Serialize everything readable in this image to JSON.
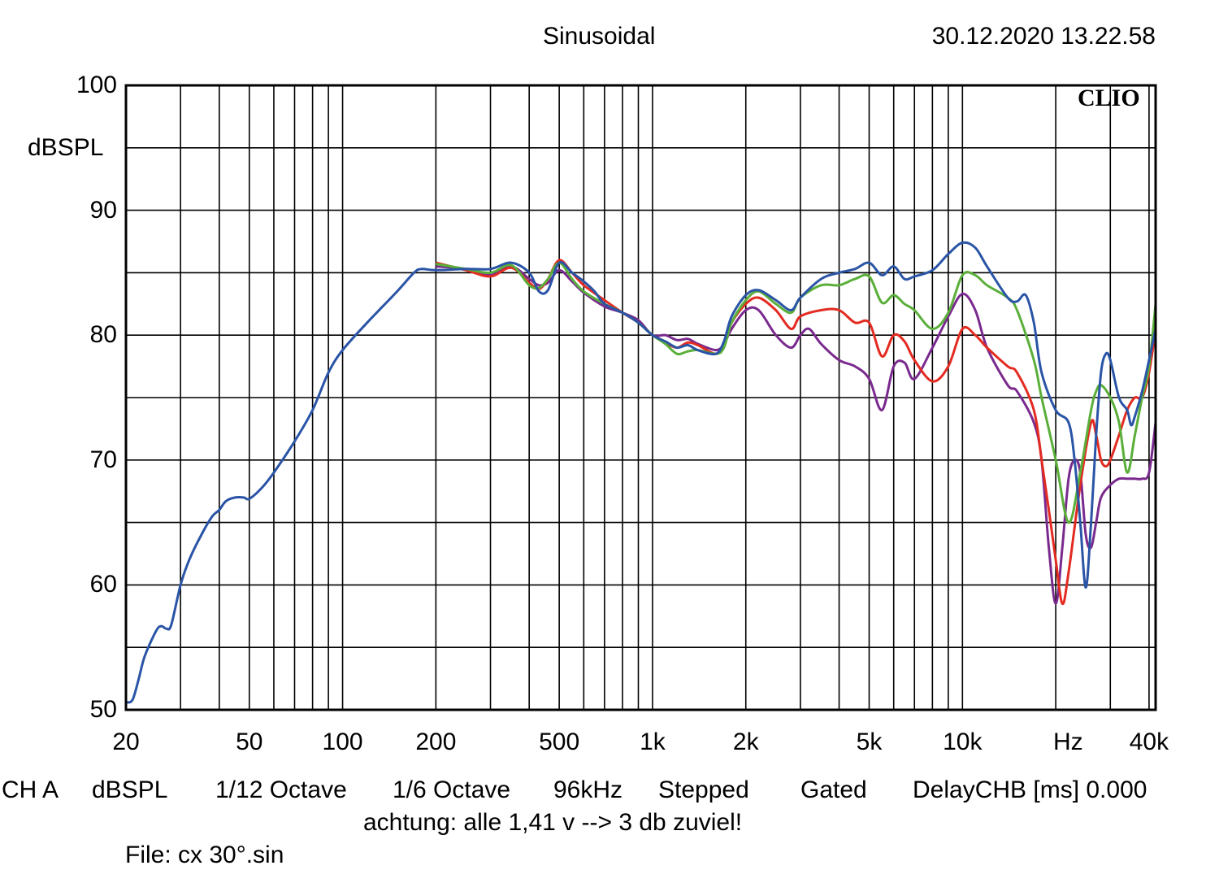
{
  "header": {
    "title": "Sinusoidal",
    "timestamp": "30.12.2020 13.22.58",
    "brand": "CLIO"
  },
  "footer": {
    "line1": [
      "CH A",
      "dBSPL",
      "1/12 Octave",
      "1/6 Octave",
      "96kHz",
      "Stepped",
      "Gated",
      "DelayCHB [ms] 0.000"
    ],
    "line2": "achtung: alle 1,41 v --> 3 db zuviel!",
    "line3": "File: cx 30°.sin"
  },
  "chart_data": {
    "type": "line",
    "title": "Sinusoidal",
    "xlabel": "Hz",
    "ylabel": "dBSPL",
    "x_scale": "log",
    "xlim": [
      20,
      42000
    ],
    "ylim": [
      50,
      100
    ],
    "grid": true,
    "legend": "none",
    "x_ticks": [
      {
        "value": 20,
        "label": "20"
      },
      {
        "value": 50,
        "label": "50"
      },
      {
        "value": 100,
        "label": "100"
      },
      {
        "value": 200,
        "label": "200"
      },
      {
        "value": 500,
        "label": "500"
      },
      {
        "value": 1000,
        "label": "1k"
      },
      {
        "value": 2000,
        "label": "2k"
      },
      {
        "value": 5000,
        "label": "5k"
      },
      {
        "value": 10000,
        "label": "10k"
      },
      {
        "value": 40000,
        "label": "40k"
      }
    ],
    "y_ticks": [
      {
        "value": 100,
        "label": "100"
      },
      {
        "value": 90,
        "label": "90"
      },
      {
        "value": 80,
        "label": "80"
      },
      {
        "value": 70,
        "label": "70"
      },
      {
        "value": 60,
        "label": "60"
      },
      {
        "value": 50,
        "label": "50"
      }
    ],
    "series": [
      {
        "color": "#2a54a6",
        "points": [
          [
            20,
            50.6
          ],
          [
            21,
            50.8
          ],
          [
            22,
            52.5
          ],
          [
            23,
            54.3
          ],
          [
            25,
            56.3
          ],
          [
            26,
            56.7
          ],
          [
            27,
            56.5
          ],
          [
            28,
            56.8
          ],
          [
            30,
            60
          ],
          [
            32,
            62
          ],
          [
            35,
            64
          ],
          [
            38,
            65.5
          ],
          [
            40,
            66
          ],
          [
            42,
            66.7
          ],
          [
            45,
            67
          ],
          [
            48,
            67
          ],
          [
            50,
            66.9
          ],
          [
            55,
            67.8
          ],
          [
            60,
            69
          ],
          [
            70,
            71.5
          ],
          [
            80,
            74
          ],
          [
            90,
            77
          ],
          [
            100,
            78.8
          ],
          [
            120,
            81
          ],
          [
            150,
            83.5
          ],
          [
            170,
            85
          ],
          [
            180,
            85.3
          ],
          [
            200,
            85.2
          ],
          [
            250,
            85.3
          ],
          [
            300,
            85.3
          ],
          [
            350,
            85.8
          ],
          [
            400,
            85
          ],
          [
            430,
            83.5
          ],
          [
            460,
            83.6
          ],
          [
            500,
            85.8
          ],
          [
            550,
            85
          ],
          [
            600,
            84.3
          ],
          [
            650,
            83.5
          ],
          [
            700,
            82.5
          ],
          [
            800,
            81.8
          ],
          [
            900,
            81
          ],
          [
            1000,
            80
          ],
          [
            1100,
            79.5
          ],
          [
            1200,
            79
          ],
          [
            1300,
            79.2
          ],
          [
            1400,
            78.8
          ],
          [
            1600,
            78.5
          ],
          [
            1700,
            79.5
          ],
          [
            1800,
            81.5
          ],
          [
            2000,
            83.2
          ],
          [
            2200,
            83.6
          ],
          [
            2500,
            82.8
          ],
          [
            2800,
            82
          ],
          [
            3000,
            83
          ],
          [
            3500,
            84.5
          ],
          [
            4000,
            85
          ],
          [
            4500,
            85.3
          ],
          [
            5000,
            85.8
          ],
          [
            5500,
            84.8
          ],
          [
            6000,
            85.5
          ],
          [
            6500,
            84.5
          ],
          [
            7000,
            84.7
          ],
          [
            8000,
            85.2
          ],
          [
            9000,
            86.5
          ],
          [
            10000,
            87.4
          ],
          [
            11000,
            87
          ],
          [
            12000,
            85.5
          ],
          [
            14000,
            83
          ],
          [
            15000,
            82.7
          ],
          [
            16000,
            83.2
          ],
          [
            17000,
            81
          ],
          [
            18000,
            77
          ],
          [
            20000,
            74
          ],
          [
            22000,
            73
          ],
          [
            23000,
            70
          ],
          [
            24000,
            65
          ],
          [
            25000,
            59.8
          ],
          [
            26000,
            65
          ],
          [
            27000,
            72
          ],
          [
            28000,
            77
          ],
          [
            29000,
            78.5
          ],
          [
            30000,
            78
          ],
          [
            32000,
            75
          ],
          [
            34000,
            74
          ],
          [
            35000,
            72.8
          ],
          [
            36000,
            73.5
          ],
          [
            38000,
            75.5
          ],
          [
            40000,
            78
          ],
          [
            42000,
            80.5
          ]
        ]
      },
      {
        "color": "#5aaf3a",
        "points": [
          [
            200,
            85.7
          ],
          [
            250,
            85.3
          ],
          [
            300,
            85
          ],
          [
            350,
            85.6
          ],
          [
            400,
            84
          ],
          [
            430,
            83.8
          ],
          [
            460,
            84.5
          ],
          [
            500,
            85.8
          ],
          [
            550,
            84.5
          ],
          [
            600,
            83.5
          ],
          [
            700,
            82.5
          ],
          [
            800,
            81.8
          ],
          [
            900,
            81
          ],
          [
            1000,
            80
          ],
          [
            1100,
            79.3
          ],
          [
            1200,
            78.5
          ],
          [
            1300,
            78.7
          ],
          [
            1400,
            78.8
          ],
          [
            1600,
            78.5
          ],
          [
            1700,
            79
          ],
          [
            1800,
            81
          ],
          [
            2000,
            82.8
          ],
          [
            2200,
            83.5
          ],
          [
            2500,
            82.5
          ],
          [
            2800,
            81.8
          ],
          [
            3000,
            83
          ],
          [
            3500,
            84
          ],
          [
            4000,
            84
          ],
          [
            4500,
            84.5
          ],
          [
            5000,
            84.7
          ],
          [
            5500,
            82.6
          ],
          [
            6000,
            83.2
          ],
          [
            6500,
            82.5
          ],
          [
            7000,
            82
          ],
          [
            8000,
            80.5
          ],
          [
            9000,
            81.8
          ],
          [
            10000,
            84.8
          ],
          [
            11000,
            84.8
          ],
          [
            12000,
            84
          ],
          [
            14000,
            83
          ],
          [
            15000,
            82
          ],
          [
            17000,
            78
          ],
          [
            18000,
            75
          ],
          [
            20000,
            70
          ],
          [
            22000,
            65
          ],
          [
            24000,
            69
          ],
          [
            26000,
            74
          ],
          [
            27000,
            75.5
          ],
          [
            28000,
            76
          ],
          [
            30000,
            75
          ],
          [
            32000,
            73
          ],
          [
            34000,
            69
          ],
          [
            36000,
            72
          ],
          [
            38000,
            75
          ],
          [
            40000,
            77.5
          ],
          [
            42000,
            82.5
          ]
        ]
      },
      {
        "color": "#e32b21",
        "points": [
          [
            200,
            85.8
          ],
          [
            250,
            85.2
          ],
          [
            300,
            84.7
          ],
          [
            350,
            85.4
          ],
          [
            400,
            84.2
          ],
          [
            430,
            83.7
          ],
          [
            460,
            84.5
          ],
          [
            500,
            86
          ],
          [
            550,
            85
          ],
          [
            600,
            84
          ],
          [
            700,
            82.8
          ],
          [
            800,
            81.8
          ],
          [
            900,
            81
          ],
          [
            1000,
            80
          ],
          [
            1100,
            79.4
          ],
          [
            1200,
            79
          ],
          [
            1300,
            79.4
          ],
          [
            1400,
            79.2
          ],
          [
            1600,
            78.5
          ],
          [
            1700,
            79.3
          ],
          [
            1800,
            81
          ],
          [
            2000,
            82.5
          ],
          [
            2200,
            83
          ],
          [
            2500,
            82
          ],
          [
            2800,
            80.5
          ],
          [
            3000,
            81.5
          ],
          [
            3500,
            82
          ],
          [
            4000,
            82
          ],
          [
            4500,
            81
          ],
          [
            5000,
            81
          ],
          [
            5500,
            78.3
          ],
          [
            6000,
            80
          ],
          [
            6500,
            79.5
          ],
          [
            7000,
            78
          ],
          [
            8000,
            76.3
          ],
          [
            9000,
            77.5
          ],
          [
            10000,
            80.5
          ],
          [
            11000,
            80
          ],
          [
            12000,
            79
          ],
          [
            14000,
            77.5
          ],
          [
            15000,
            77
          ],
          [
            17000,
            74
          ],
          [
            18000,
            70
          ],
          [
            19000,
            66
          ],
          [
            20000,
            62
          ],
          [
            21000,
            58.5
          ],
          [
            22000,
            61
          ],
          [
            24000,
            68
          ],
          [
            26000,
            73
          ],
          [
            27000,
            72
          ],
          [
            28000,
            70
          ],
          [
            29000,
            69.5
          ],
          [
            30000,
            70
          ],
          [
            32000,
            72
          ],
          [
            34000,
            74
          ],
          [
            36000,
            75
          ],
          [
            38000,
            75
          ],
          [
            40000,
            77
          ],
          [
            42000,
            80.5
          ]
        ]
      },
      {
        "color": "#7a2a8e",
        "points": [
          [
            200,
            85.5
          ],
          [
            250,
            85.3
          ],
          [
            300,
            84.8
          ],
          [
            350,
            85.5
          ],
          [
            400,
            84.5
          ],
          [
            430,
            84
          ],
          [
            460,
            84.2
          ],
          [
            500,
            85.2
          ],
          [
            550,
            84.3
          ],
          [
            600,
            83.4
          ],
          [
            700,
            82.3
          ],
          [
            800,
            81.8
          ],
          [
            900,
            81.2
          ],
          [
            1000,
            80
          ],
          [
            1100,
            80
          ],
          [
            1200,
            79.6
          ],
          [
            1300,
            79.7
          ],
          [
            1400,
            79.3
          ],
          [
            1600,
            78.8
          ],
          [
            1700,
            79.3
          ],
          [
            1800,
            80.5
          ],
          [
            2000,
            82
          ],
          [
            2200,
            82
          ],
          [
            2500,
            80
          ],
          [
            2800,
            79
          ],
          [
            3000,
            80
          ],
          [
            3200,
            80.5
          ],
          [
            3500,
            79.3
          ],
          [
            4000,
            78
          ],
          [
            4500,
            77.5
          ],
          [
            5000,
            76.5
          ],
          [
            5500,
            74
          ],
          [
            6000,
            77.5
          ],
          [
            6500,
            77.8
          ],
          [
            7000,
            76.5
          ],
          [
            8000,
            79
          ],
          [
            9000,
            81.5
          ],
          [
            10000,
            83.3
          ],
          [
            11000,
            82
          ],
          [
            12000,
            79
          ],
          [
            14000,
            76
          ],
          [
            15000,
            75.5
          ],
          [
            17000,
            73
          ],
          [
            18000,
            70
          ],
          [
            19000,
            63
          ],
          [
            20000,
            58.5
          ],
          [
            21000,
            63
          ],
          [
            22000,
            68.5
          ],
          [
            23000,
            70
          ],
          [
            24000,
            69
          ],
          [
            25000,
            64
          ],
          [
            26000,
            63
          ],
          [
            27000,
            65
          ],
          [
            28000,
            67
          ],
          [
            30000,
            68
          ],
          [
            32000,
            68.5
          ],
          [
            34000,
            68.5
          ],
          [
            36000,
            68.5
          ],
          [
            38000,
            68.5
          ],
          [
            40000,
            69
          ],
          [
            42000,
            73
          ]
        ]
      }
    ]
  }
}
